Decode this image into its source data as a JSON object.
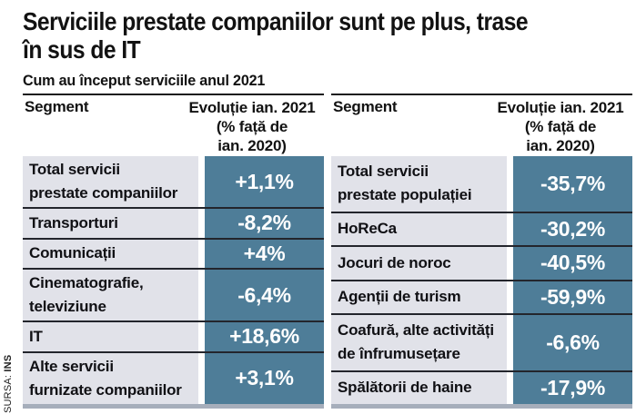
{
  "title_lines": [
    "Serviciile prestate companiilor sunt pe plus, trase",
    "în sus de IT"
  ],
  "subtitle": "Cum au început serviciile anul 2021",
  "source": {
    "prefix": "SURSA:",
    "name": "INS"
  },
  "colors": {
    "value_cell_blue": "#4e7d98",
    "label_cell_bg": "#e1e2e9",
    "row_separator": "#23252c",
    "table_bottom_bar": "#a6aebb",
    "table_top_border": "#1a1a1d"
  },
  "tables": [
    {
      "name": "servicii-prestate-companiilor",
      "header": {
        "segment": "Segment",
        "evolution_lines": [
          "Evoluție ian. 2021",
          "(% față de",
          "ian. 2020)"
        ]
      },
      "rows": [
        {
          "label_lines": [
            "Total servicii",
            "prestate companiilor"
          ],
          "value": "+1,1%"
        },
        {
          "label_lines": [
            "Transporturi"
          ],
          "value": "-8,2%"
        },
        {
          "label_lines": [
            "Comunicații"
          ],
          "value": "+4%"
        },
        {
          "label_lines": [
            "Cinematografie,",
            "televiziune"
          ],
          "value": "-6,4%"
        },
        {
          "label_lines": [
            "IT"
          ],
          "value": "+18,6%"
        },
        {
          "label_lines": [
            "Alte servicii",
            "furnizate companiilor"
          ],
          "value": "+3,1%"
        }
      ]
    },
    {
      "name": "servicii-prestate-populatiei",
      "header": {
        "segment": "Segment",
        "evolution_lines": [
          "Evoluție ian. 2021",
          "(% față de",
          "ian. 2020)"
        ]
      },
      "rows": [
        {
          "label_lines": [
            "Total servicii",
            "prestate populației"
          ],
          "value": "-35,7%"
        },
        {
          "label_lines": [
            "HoReCa"
          ],
          "value": "-30,2%"
        },
        {
          "label_lines": [
            "Jocuri de noroc"
          ],
          "value": "-40,5%"
        },
        {
          "label_lines": [
            "Agenții de turism"
          ],
          "value": "-59,9%"
        },
        {
          "label_lines": [
            "Coafură, alte activități",
            "de înfrumusețare"
          ],
          "value": "-6,6%"
        },
        {
          "label_lines": [
            "Spălătorii de haine"
          ],
          "value": "-17,9%"
        }
      ]
    }
  ],
  "chart_data": [
    {
      "type": "table",
      "title": "Cum au început serviciile anul 2021 — servicii prestate companiilor",
      "columns": [
        "Segment",
        "Evoluție ian. 2021 (% față de ian. 2020)"
      ],
      "unit": "%",
      "rows": [
        [
          "Total servicii prestate companiilor",
          1.1
        ],
        [
          "Transporturi",
          -8.2
        ],
        [
          "Comunicații",
          4
        ],
        [
          "Cinematografie, televiziune",
          -6.4
        ],
        [
          "IT",
          18.6
        ],
        [
          "Alte servicii furnizate companiilor",
          3.1
        ]
      ]
    },
    {
      "type": "table",
      "title": "Cum au început serviciile anul 2021 — servicii prestate populației",
      "columns": [
        "Segment",
        "Evoluție ian. 2021 (% față de ian. 2020)"
      ],
      "unit": "%",
      "rows": [
        [
          "Total servicii prestate populației",
          -35.7
        ],
        [
          "HoReCa",
          -30.2
        ],
        [
          "Jocuri de noroc",
          -40.5
        ],
        [
          "Agenții de turism",
          -59.9
        ],
        [
          "Coafură, alte activități de înfrumusețare",
          -6.6
        ],
        [
          "Spălătorii de haine",
          -17.9
        ]
      ]
    }
  ]
}
